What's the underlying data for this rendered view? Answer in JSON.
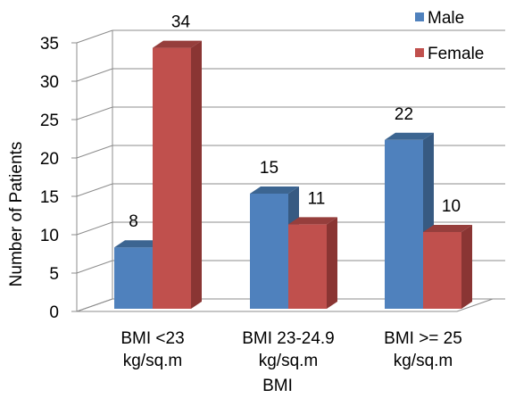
{
  "chart_data": {
    "type": "bar",
    "title": "",
    "xlabel": "BMI",
    "ylabel": "Number of Patients",
    "categories": [
      [
        "BMI <23",
        "kg/sq.m"
      ],
      [
        "BMI 23-24.9",
        "kg/sq.m"
      ],
      [
        "BMI >= 25",
        "kg/sq.m"
      ]
    ],
    "series": [
      {
        "name": "Male",
        "values": [
          8,
          15,
          22
        ],
        "color": "#4f81bd",
        "top_color": "#3c6591",
        "side_color": "#375a82"
      },
      {
        "name": "Female",
        "values": [
          34,
          11,
          10
        ],
        "color": "#c0504d",
        "top_color": "#963e3c",
        "side_color": "#8a3533"
      }
    ],
    "ylim": [
      0,
      35
    ],
    "yticks": [
      0,
      5,
      10,
      15,
      20,
      25,
      30,
      35
    ],
    "grid": true,
    "legend_position": "top-right",
    "style": "3d-clustered-column"
  }
}
